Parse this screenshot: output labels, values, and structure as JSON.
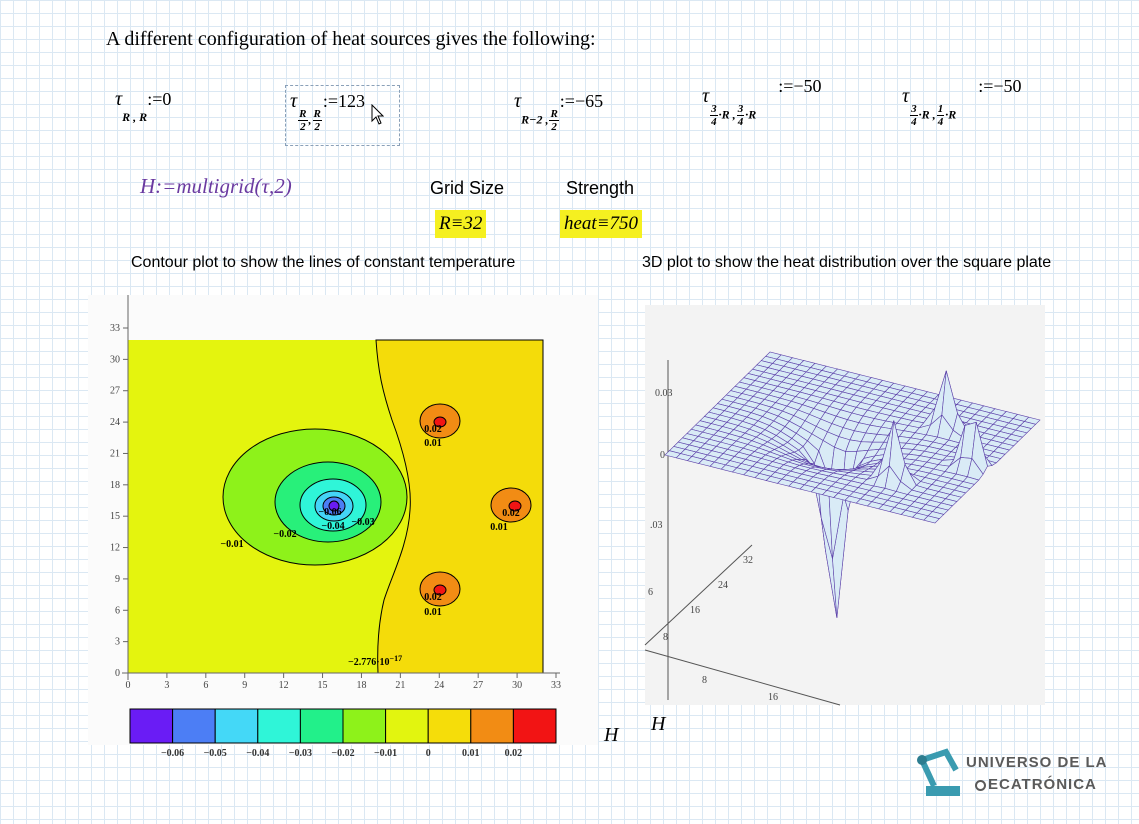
{
  "heading": "A different configuration of heat sources gives the following:",
  "definitions": [
    {
      "symbol": "τ",
      "subscript": [
        "R , R"
      ],
      "assign": ":=0"
    },
    {
      "symbol": "τ",
      "subscript": [
        {
          "num": "R",
          "den": "2"
        },
        ",",
        {
          "num": "R",
          "den": "2"
        }
      ],
      "assign": ":=123"
    },
    {
      "symbol": "τ",
      "subscript": [
        "R−2 ,",
        {
          "num": "R",
          "den": "2"
        }
      ],
      "assign": ":=−65"
    },
    {
      "symbol": "τ",
      "subscript": [
        {
          "num": "3",
          "den": "4"
        },
        "·R ,",
        {
          "num": "3",
          "den": "4"
        },
        "·R"
      ],
      "assign": ":=−50"
    },
    {
      "symbol": "τ",
      "subscript": [
        {
          "num": "3",
          "den": "4"
        },
        "·R ,",
        {
          "num": "1",
          "den": "4"
        },
        "·R"
      ],
      "assign": ":=−50"
    }
  ],
  "solve": "H:=multigrid(τ,2)",
  "parameters": [
    {
      "label": "Grid Size",
      "expression": "R≡32"
    },
    {
      "label": "Strength",
      "expression": "heat≡750"
    }
  ],
  "captions": [
    "Contour plot to show the lines of constant temperature",
    "3D plot to show the heat distribution over the square plate"
  ],
  "contour_plot": {
    "xticks": [
      0,
      3,
      6,
      9,
      12,
      15,
      18,
      21,
      24,
      27,
      30,
      33
    ],
    "yticks": [
      0,
      3,
      6,
      9,
      12,
      15,
      18,
      21,
      24,
      27,
      30,
      33
    ],
    "contour_labels": [
      "0.02",
      "0.01",
      "0.02",
      "0.01",
      "0.02",
      "0.01",
      "−0.01",
      "−0.02",
      "−0.04",
      "−0.03",
      "−0.06"
    ],
    "zero_label": {
      "mantissa": "−2.776·10",
      "exponent": "−17"
    },
    "colorbar_labels": [
      "−0.06",
      "−0.05",
      "−0.04",
      "−0.03",
      "−0.02",
      "−0.01",
      "0",
      "0.01",
      "0.02"
    ],
    "axis_label": "H"
  },
  "surface_plot": {
    "z_labels": [
      "0.03",
      "0",
      ".03",
      "6"
    ],
    "depth_labels": [
      "8",
      "16",
      "24",
      "32"
    ],
    "width_labels": [
      "8",
      "16"
    ],
    "axis_label": "H"
  },
  "logo": {
    "line1": "UNIVERSO DE LA",
    "line2": "ECATRÓNICA"
  }
}
